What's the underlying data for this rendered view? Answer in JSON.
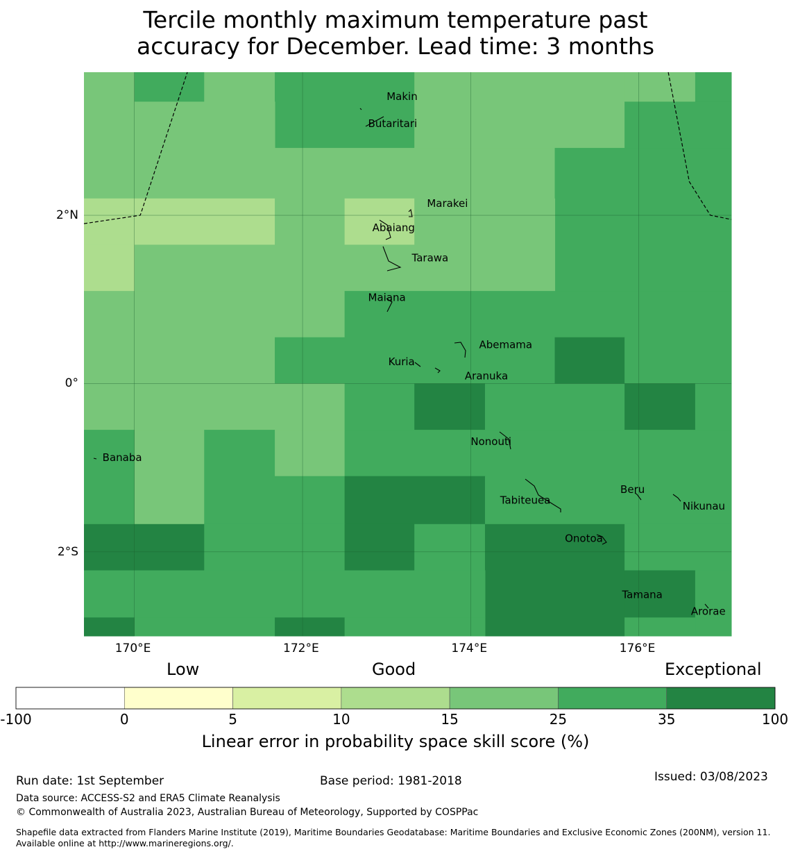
{
  "title": {
    "line1": "Tercile monthly maximum temperature past",
    "line2": "accuracy for December. Lead time: 3 months"
  },
  "map": {
    "lon_range": [
      169.4,
      177.1
    ],
    "lat_range": [
      -3.0,
      3.7
    ],
    "x_ticks": [
      {
        "value": 170,
        "label": "170°E"
      },
      {
        "value": 172,
        "label": "172°E"
      },
      {
        "value": 174,
        "label": "174°E"
      },
      {
        "value": 176,
        "label": "176°E"
      }
    ],
    "y_ticks": [
      {
        "value": 2,
        "label": "2°N"
      },
      {
        "value": 0,
        "label": "0°"
      },
      {
        "value": -2,
        "label": "2°S"
      }
    ],
    "color_levels": [
      "#ffffff",
      "#ffffcc",
      "#d9f0a3",
      "#addd8e",
      "#78c679",
      "#41ab5d",
      "#238443"
    ],
    "grid_cells": {
      "note_rows": "row 0 = northernmost; values are color class index 0-6",
      "rows": [
        [
          4,
          5,
          4,
          4,
          5,
          5,
          4,
          4,
          4,
          4,
          4,
          4,
          5,
          5,
          5,
          5,
          4,
          4,
          4,
          4,
          4,
          5,
          5,
          5,
          5,
          4,
          4,
          4,
          4,
          4,
          4,
          4,
          4,
          4,
          4,
          4,
          4,
          4,
          4,
          5,
          5,
          5,
          5,
          5,
          5,
          5,
          5,
          4,
          4,
          4,
          4,
          4,
          5,
          5,
          5,
          5,
          5,
          5,
          5,
          5
        ],
        [
          4,
          4,
          4,
          4,
          4,
          4,
          4,
          4,
          4,
          4,
          4,
          4,
          5,
          5,
          5,
          5,
          4,
          4,
          4,
          4,
          4,
          5,
          5,
          5,
          5,
          4,
          4,
          4,
          4,
          4,
          4,
          4,
          4,
          4,
          4,
          4,
          4,
          4,
          4,
          5,
          5,
          5,
          5,
          5,
          5,
          5,
          5,
          4,
          4,
          4,
          4,
          4,
          5,
          5,
          5,
          5,
          5,
          5,
          5,
          5
        ],
        [
          4,
          4,
          4,
          4,
          4,
          4,
          4,
          4,
          4,
          4,
          4,
          4,
          4,
          4,
          4,
          4,
          4,
          4,
          4,
          4,
          4,
          4,
          4,
          4,
          4,
          4,
          4,
          4,
          4,
          4,
          4,
          4,
          4,
          4,
          4,
          4,
          4,
          4,
          4,
          5,
          5,
          5,
          5,
          5,
          5,
          5,
          5,
          4,
          4,
          4,
          4,
          4,
          5,
          5,
          5,
          5,
          5,
          5,
          5,
          5
        ]
      ],
      "cells": [
        {
          "lon0": 169.4,
          "lon1": 170.0,
          "lat0": 3.35,
          "lat1": 3.7,
          "level": 4
        },
        {
          "lon0": 170.0,
          "lon1": 170.83,
          "lat0": 3.35,
          "lat1": 3.7,
          "level": 5
        },
        {
          "lon0": 170.83,
          "lon1": 171.67,
          "lat0": 3.35,
          "lat1": 3.7,
          "level": 4
        },
        {
          "lon0": 171.67,
          "lon1": 173.33,
          "lat0": 2.8,
          "lat1": 3.7,
          "level": 5
        },
        {
          "lon0": 173.33,
          "lon1": 175.83,
          "lat0": 2.8,
          "lat1": 3.7,
          "level": 4
        },
        {
          "lon0": 175.83,
          "lon1": 176.67,
          "lat0": 3.35,
          "lat1": 3.7,
          "level": 4
        },
        {
          "lon0": 176.67,
          "lon1": 177.1,
          "lat0": 3.35,
          "lat1": 3.7,
          "level": 5
        },
        {
          "lon0": 169.4,
          "lon1": 171.67,
          "lat0": 2.2,
          "lat1": 3.35,
          "level": 4
        },
        {
          "lon0": 175.83,
          "lon1": 177.1,
          "lat0": 2.8,
          "lat1": 3.35,
          "level": 5
        },
        {
          "lon0": 171.67,
          "lon1": 175.0,
          "lat0": 2.2,
          "lat1": 2.8,
          "level": 4
        },
        {
          "lon0": 175.0,
          "lon1": 177.1,
          "lat0": 1.1,
          "lat1": 2.8,
          "level": 5
        },
        {
          "lon0": 169.4,
          "lon1": 171.67,
          "lat0": 1.65,
          "lat1": 2.2,
          "level": 3
        },
        {
          "lon0": 171.67,
          "lon1": 172.5,
          "lat0": 1.65,
          "lat1": 2.2,
          "level": 4
        },
        {
          "lon0": 172.5,
          "lon1": 173.33,
          "lat0": 1.65,
          "lat1": 2.2,
          "level": 3
        },
        {
          "lon0": 173.33,
          "lon1": 175.0,
          "lat0": 1.1,
          "lat1": 2.2,
          "level": 4
        },
        {
          "lon0": 169.4,
          "lon1": 170.0,
          "lat0": 1.1,
          "lat1": 1.65,
          "level": 3
        },
        {
          "lon0": 170.0,
          "lon1": 173.33,
          "lat0": 1.1,
          "lat1": 1.65,
          "level": 4
        },
        {
          "lon0": 169.4,
          "lon1": 172.5,
          "lat0": 0.55,
          "lat1": 1.1,
          "level": 4
        },
        {
          "lon0": 172.5,
          "lon1": 177.1,
          "lat0": 0.55,
          "lat1": 1.1,
          "level": 5
        },
        {
          "lon0": 169.4,
          "lon1": 171.67,
          "lat0": 0.0,
          "lat1": 0.55,
          "level": 4
        },
        {
          "lon0": 171.67,
          "lon1": 175.0,
          "lat0": 0.0,
          "lat1": 0.55,
          "level": 5
        },
        {
          "lon0": 175.0,
          "lon1": 175.83,
          "lat0": 0.0,
          "lat1": 0.55,
          "level": 6
        },
        {
          "lon0": 175.83,
          "lon1": 177.1,
          "lat0": 0.0,
          "lat1": 0.55,
          "level": 5
        },
        {
          "lon0": 169.4,
          "lon1": 172.5,
          "lat0": -0.55,
          "lat1": 0.0,
          "level": 4
        },
        {
          "lon0": 172.5,
          "lon1": 173.33,
          "lat0": -0.55,
          "lat1": 0.0,
          "level": 5
        },
        {
          "lon0": 173.33,
          "lon1": 174.17,
          "lat0": -0.55,
          "lat1": 0.0,
          "level": 6
        },
        {
          "lon0": 174.17,
          "lon1": 175.83,
          "lat0": -0.55,
          "lat1": 0.0,
          "level": 5
        },
        {
          "lon0": 175.83,
          "lon1": 176.67,
          "lat0": -0.55,
          "lat1": 0.0,
          "level": 6
        },
        {
          "lon0": 176.67,
          "lon1": 177.1,
          "lat0": -0.55,
          "lat1": 0.0,
          "level": 5
        },
        {
          "lon0": 169.4,
          "lon1": 170.0,
          "lat0": -1.67,
          "lat1": -0.55,
          "level": 5
        },
        {
          "lon0": 170.0,
          "lon1": 170.83,
          "lat0": -1.67,
          "lat1": -0.55,
          "level": 4
        },
        {
          "lon0": 170.83,
          "lon1": 171.67,
          "lat0": -1.67,
          "lat1": -0.55,
          "level": 5
        },
        {
          "lon0": 171.67,
          "lon1": 172.5,
          "lat0": -1.1,
          "lat1": -0.55,
          "level": 4
        },
        {
          "lon0": 172.5,
          "lon1": 177.1,
          "lat0": -1.1,
          "lat1": -0.55,
          "level": 5
        },
        {
          "lon0": 171.67,
          "lon1": 172.5,
          "lat0": -1.67,
          "lat1": -1.1,
          "level": 5
        },
        {
          "lon0": 172.5,
          "lon1": 174.17,
          "lat0": -1.67,
          "lat1": -1.1,
          "level": 6
        },
        {
          "lon0": 174.17,
          "lon1": 177.1,
          "lat0": -1.67,
          "lat1": -1.1,
          "level": 5
        },
        {
          "lon0": 169.4,
          "lon1": 170.83,
          "lat0": -2.22,
          "lat1": -1.67,
          "level": 6
        },
        {
          "lon0": 170.83,
          "lon1": 172.5,
          "lat0": -2.22,
          "lat1": -1.67,
          "level": 5
        },
        {
          "lon0": 172.5,
          "lon1": 173.33,
          "lat0": -2.22,
          "lat1": -1.67,
          "level": 6
        },
        {
          "lon0": 173.33,
          "lon1": 174.17,
          "lat0": -2.22,
          "lat1": -1.67,
          "level": 5
        },
        {
          "lon0": 174.17,
          "lon1": 175.83,
          "lat0": -3.0,
          "lat1": -1.67,
          "level": 6
        },
        {
          "lon0": 175.83,
          "lon1": 177.1,
          "lat0": -2.22,
          "lat1": -1.67,
          "level": 5
        },
        {
          "lon0": 169.4,
          "lon1": 174.17,
          "lat0": -2.78,
          "lat1": -2.22,
          "level": 5
        },
        {
          "lon0": 175.83,
          "lon1": 176.67,
          "lat0": -2.78,
          "lat1": -2.22,
          "level": 6
        },
        {
          "lon0": 176.67,
          "lon1": 177.1,
          "lat0": -3.0,
          "lat1": -2.22,
          "level": 5
        },
        {
          "lon0": 169.4,
          "lon1": 170.0,
          "lat0": -3.0,
          "lat1": -2.78,
          "level": 6
        },
        {
          "lon0": 170.0,
          "lon1": 171.67,
          "lat0": -3.0,
          "lat1": -2.78,
          "level": 5
        },
        {
          "lon0": 171.67,
          "lon1": 172.5,
          "lat0": -3.0,
          "lat1": -2.78,
          "level": 6
        },
        {
          "lon0": 172.5,
          "lon1": 174.17,
          "lat0": -3.0,
          "lat1": -2.78,
          "level": 5
        },
        {
          "lon0": 175.83,
          "lon1": 176.67,
          "lat0": -3.0,
          "lat1": -2.78,
          "level": 5
        }
      ]
    },
    "boundary_lines": [
      [
        [
          169.4,
          1.9
        ],
        [
          170.07,
          2.0
        ],
        [
          170.63,
          3.7
        ]
      ],
      [
        [
          176.35,
          3.7
        ],
        [
          176.6,
          2.4
        ],
        [
          176.85,
          2.0
        ],
        [
          177.1,
          1.95
        ]
      ]
    ],
    "places": [
      {
        "name": "Makin",
        "lon": 173.0,
        "lat": 3.37
      },
      {
        "name": "Butaritari",
        "lon": 172.78,
        "lat": 3.05
      },
      {
        "name": "Marakei",
        "lon": 173.48,
        "lat": 2.1
      },
      {
        "name": "Abaiang",
        "lon": 172.83,
        "lat": 1.81
      },
      {
        "name": "Tarawa",
        "lon": 173.3,
        "lat": 1.45
      },
      {
        "name": "Maiana",
        "lon": 172.78,
        "lat": 0.98
      },
      {
        "name": "Abemama",
        "lon": 174.1,
        "lat": 0.42
      },
      {
        "name": "Kuria",
        "lon": 173.02,
        "lat": 0.22
      },
      {
        "name": "Aranuka",
        "lon": 173.93,
        "lat": 0.05
      },
      {
        "name": "Nonouti",
        "lon": 174.0,
        "lat": -0.73
      },
      {
        "name": "Banaba",
        "lon": 169.62,
        "lat": -0.92
      },
      {
        "name": "Tabiteuea",
        "lon": 174.35,
        "lat": -1.43
      },
      {
        "name": "Beru",
        "lon": 175.78,
        "lat": -1.3
      },
      {
        "name": "Nikunau",
        "lon": 176.52,
        "lat": -1.5
      },
      {
        "name": "Onotoa",
        "lon": 175.12,
        "lat": -1.88
      },
      {
        "name": "Tamana",
        "lon": 175.8,
        "lat": -2.55
      },
      {
        "name": "Arorae",
        "lon": 176.62,
        "lat": -2.75
      }
    ]
  },
  "colorbar": {
    "category_labels": [
      "Low",
      "Good",
      "Exceptional"
    ],
    "boundaries": [
      "-100",
      "0",
      "5",
      "10",
      "15",
      "25",
      "35",
      "100"
    ],
    "colors": [
      "#ffffff",
      "#ffffcc",
      "#d9f0a3",
      "#addd8e",
      "#78c679",
      "#41ab5d",
      "#238443"
    ],
    "title": "Linear error in probability space skill score (%)"
  },
  "footer": {
    "run_date": "Run date: 1st September",
    "base_period": "Base period: 1981-2018",
    "issued": "Issued: 03/08/2023",
    "data_source": "Data source: ACCESS-S2 and ERA5 Climate Reanalysis",
    "copyright": "© Commonwealth of Australia 2023, Australian Bureau of Meteorology, Supported by COSPPac",
    "shapefile": "Shapefile data extracted from Flanders Marine Institute (2019), Maritime Boundaries Geodatabase: Maritime Boundaries and Exclusive Economic Zones (200NM), version 11. Available online at http://www.marineregions.org/."
  }
}
